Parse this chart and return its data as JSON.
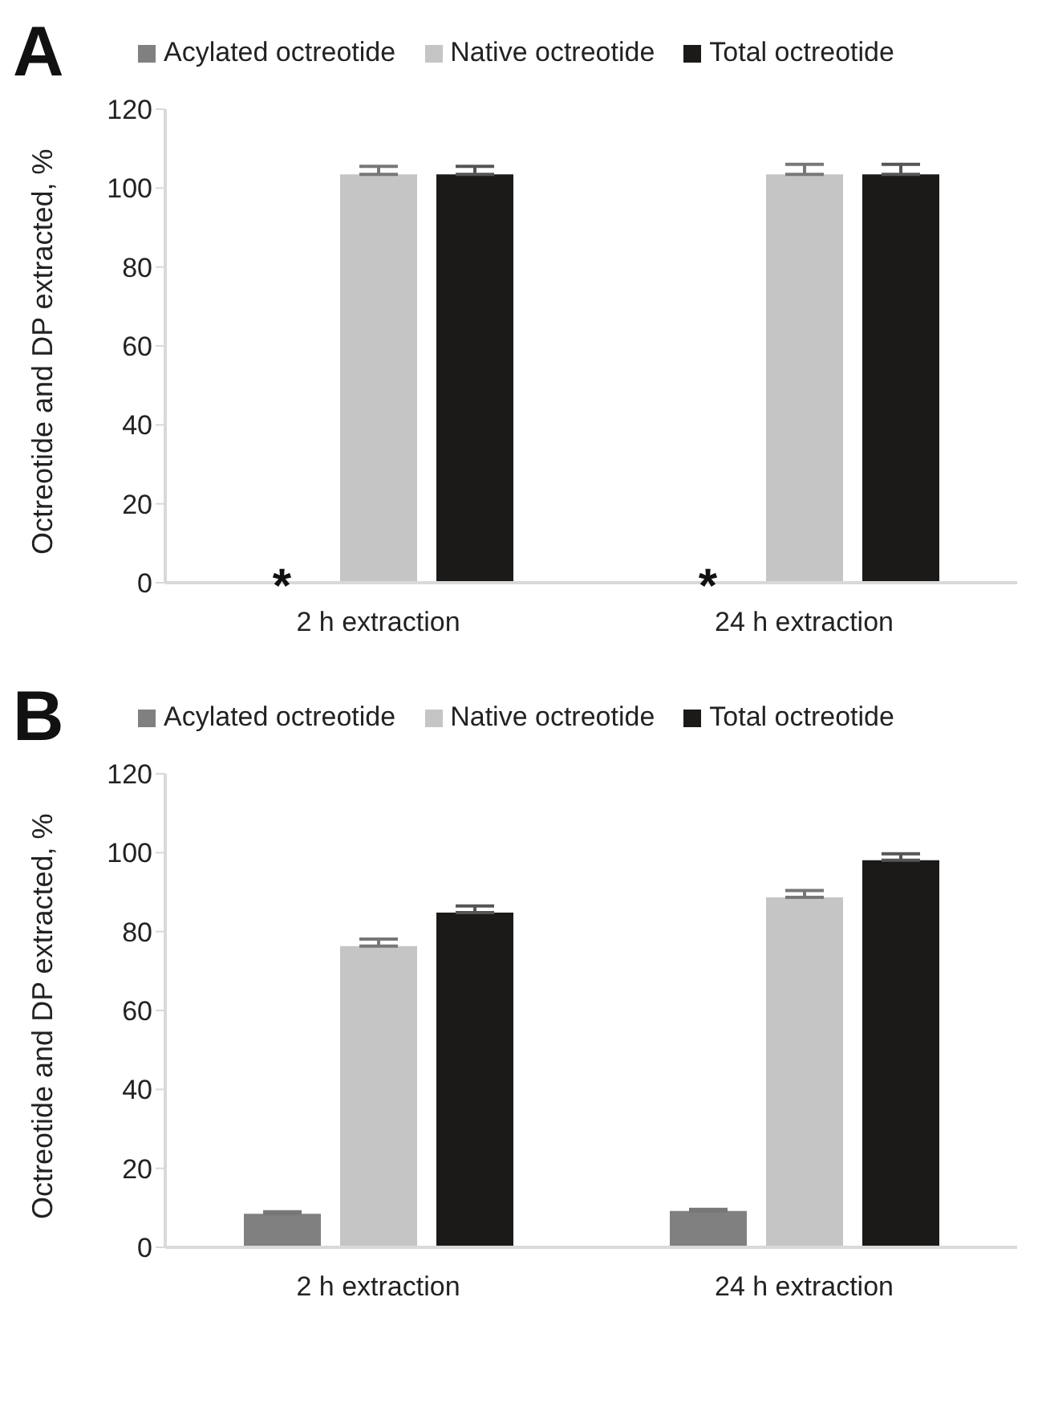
{
  "chart_data": [
    {
      "type": "bar",
      "title": "A",
      "ylabel": "Octreotide and DP extracted, %",
      "categories": [
        "2 h extraction",
        "24 h extraction"
      ],
      "ylim": [
        0,
        120
      ],
      "yticks": [
        0,
        20,
        40,
        60,
        80,
        100,
        120
      ],
      "grid": false,
      "legend": "top",
      "series": [
        {
          "name": "Acylated octreotide",
          "color": "#808080",
          "values": [
            null,
            null
          ]
        },
        {
          "name": "Native octreotide",
          "color": "#c5c5c5",
          "values": [
            103.5,
            103.5
          ],
          "errors": [
            [
              103.5,
              105.5
            ],
            [
              103.5,
              106
            ]
          ]
        },
        {
          "name": "Total octreotide",
          "color": "#1b1a18",
          "values": [
            103.5,
            103.5
          ],
          "errors": [
            [
              103.5,
              105.5
            ],
            [
              103.5,
              106
            ]
          ]
        }
      ],
      "annotations": [
        "*",
        "*"
      ]
    },
    {
      "type": "bar",
      "title": "B",
      "ylabel": "Octreotide and DP extracted, %",
      "categories": [
        "2 h extraction",
        "24 h extraction"
      ],
      "ylim": [
        0,
        120
      ],
      "yticks": [
        0,
        20,
        40,
        60,
        80,
        100,
        120
      ],
      "grid": false,
      "legend": "top",
      "series": [
        {
          "name": "Acylated octreotide",
          "color": "#808080",
          "values": [
            8.5,
            9.2
          ],
          "errors": [
            [
              8.5,
              9
            ],
            [
              9.2,
              9.6
            ]
          ]
        },
        {
          "name": "Native octreotide",
          "color": "#c5c5c5",
          "values": [
            76.3,
            88.7
          ],
          "errors": [
            [
              76.3,
              78.1
            ],
            [
              88.7,
              90.4
            ]
          ]
        },
        {
          "name": "Total octreotide",
          "color": "#1b1a18",
          "values": [
            84.8,
            98.1
          ],
          "errors": [
            [
              84.8,
              86.5
            ],
            [
              98.1,
              99.7
            ]
          ]
        }
      ]
    }
  ]
}
